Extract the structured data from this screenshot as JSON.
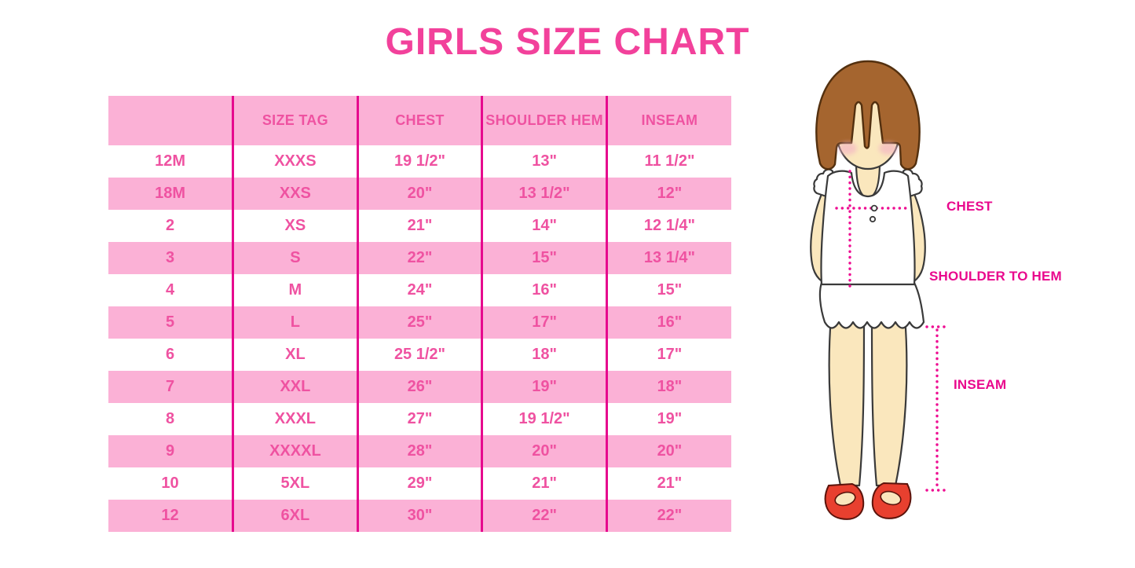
{
  "title": "GIRLS SIZE CHART",
  "table": {
    "columns": [
      "",
      "SIZE TAG",
      "CHEST",
      "SHOULDER HEM",
      "INSEAM"
    ],
    "rows": [
      [
        "12M",
        "XXXS",
        "19 1/2\"",
        "13\"",
        "11 1/2\""
      ],
      [
        "18M",
        "XXS",
        "20\"",
        "13 1/2\"",
        "12\""
      ],
      [
        "2",
        "XS",
        "21\"",
        "14\"",
        "12 1/4\""
      ],
      [
        "3",
        "S",
        "22\"",
        "15\"",
        "13 1/4\""
      ],
      [
        "4",
        "M",
        "24\"",
        "16\"",
        "15\""
      ],
      [
        "5",
        "L",
        "25\"",
        "17\"",
        "16\""
      ],
      [
        "6",
        "XL",
        "25 1/2\"",
        "18\"",
        "17\""
      ],
      [
        "7",
        "XXL",
        "26\"",
        "19\"",
        "18\""
      ],
      [
        "8",
        "XXXL",
        "27\"",
        "19 1/2\"",
        "19\""
      ],
      [
        "9",
        "XXXXL",
        "28\"",
        "20\"",
        "20\""
      ],
      [
        "10",
        "5XL",
        "29\"",
        "21\"",
        "21\""
      ],
      [
        "12",
        "6XL",
        "30\"",
        "22\"",
        "22\""
      ]
    ]
  },
  "figure": {
    "labels": {
      "chest": "CHEST",
      "shoulder_to_hem": "SHOULDER TO HEM",
      "inseam": "INSEAM"
    }
  },
  "colors": {
    "title_pink": "#F2419B",
    "table_text": "#EF52A1",
    "row_pink": "#FBB1D6",
    "divider": "#E6098E",
    "label_text": "#E9088D",
    "dotted_line": "#EE0D92",
    "hair": "#A5652F",
    "skin": "#FAE7BD",
    "blush": "#F3B3C4",
    "shoe": "#E8402F"
  }
}
